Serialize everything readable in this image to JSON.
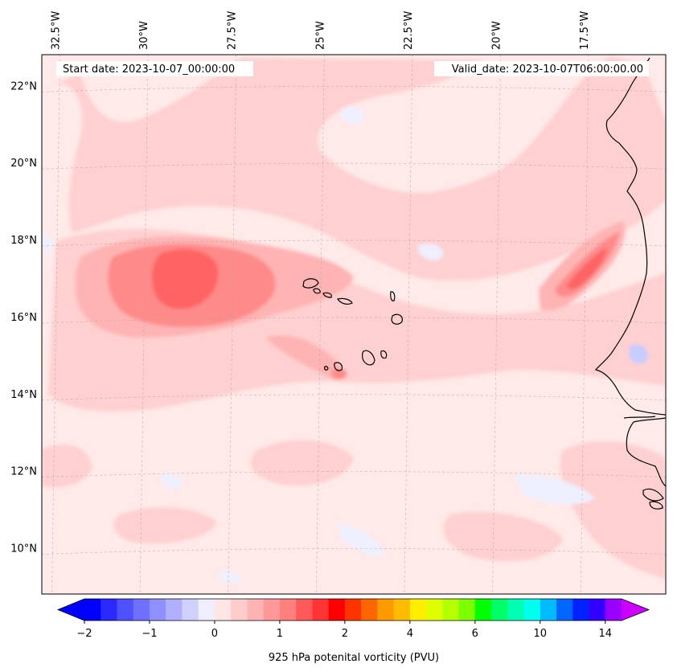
{
  "header": {
    "start_date": "Start date: 2023-10-07_00:00:00",
    "valid_date": "Valid_date: 2023-10-07T06:00:00.00"
  },
  "map": {
    "extent": {
      "lon_min": -32.9,
      "lon_max": -15.2,
      "lat_min": 8.8,
      "lat_max": 22.8
    },
    "lon_ticks": [
      {
        "lon": -32.5,
        "label": "32.5°W"
      },
      {
        "lon": -30.0,
        "label": "30°W"
      },
      {
        "lon": -27.5,
        "label": "27.5°W"
      },
      {
        "lon": -25.0,
        "label": "25°W"
      },
      {
        "lon": -22.5,
        "label": "22.5°W"
      },
      {
        "lon": -20.0,
        "label": "20°W"
      },
      {
        "lon": -17.5,
        "label": "17.5°W"
      }
    ],
    "lat_ticks": [
      {
        "lat": 22,
        "label": "22°N"
      },
      {
        "lat": 20,
        "label": "20°N"
      },
      {
        "lat": 18,
        "label": "18°N"
      },
      {
        "lat": 16,
        "label": "16°N"
      },
      {
        "lat": 14,
        "label": "14°N"
      },
      {
        "lat": 12,
        "label": "12°N"
      },
      {
        "lat": 10,
        "label": "10°N"
      }
    ],
    "gridlines": true,
    "colors": {
      "background": "#ffe9e9",
      "level_1": "#ffd0d0",
      "level_2": "#ffb4b4",
      "level_3": "#ff8a8a",
      "level_4": "#ff6464",
      "neg_light": "#eef0ff",
      "neg_mid": "#c8ccff",
      "neg_deep": "#8c90ff",
      "coast": "#000000"
    }
  },
  "colorbar": {
    "label": "925 hPa potenital vorticity (PVU)",
    "colors": [
      "#0000ff",
      "#2a2aff",
      "#5050ff",
      "#7070ff",
      "#9090ff",
      "#b0b0ff",
      "#d0d0ff",
      "#eeeeff",
      "#ffe6e6",
      "#ffcccc",
      "#ffb3b3",
      "#ff9999",
      "#ff7f7f",
      "#ff5a5a",
      "#ff3434",
      "#ff0000",
      "#ff3300",
      "#ff6600",
      "#ff9900",
      "#ffbb00",
      "#ffee00",
      "#ddff00",
      "#b4ff00",
      "#7cff00",
      "#00ff00",
      "#00ff66",
      "#00ffb0",
      "#00ffee",
      "#00bbff",
      "#0066ff",
      "#0022ff",
      "#3300ff",
      "#9900ff"
    ],
    "under_color": "#0000ff",
    "over_color": "#cc00ff",
    "ticks": [
      {
        "index": 0,
        "label": "−2"
      },
      {
        "index": 4,
        "label": "−1"
      },
      {
        "index": 8,
        "label": "0"
      },
      {
        "index": 12,
        "label": "1"
      },
      {
        "index": 16,
        "label": "2"
      },
      {
        "index": 20,
        "label": "4"
      },
      {
        "index": 24,
        "label": "6"
      },
      {
        "index": 28,
        "label": "10"
      },
      {
        "index": 32,
        "label": "14"
      }
    ]
  }
}
